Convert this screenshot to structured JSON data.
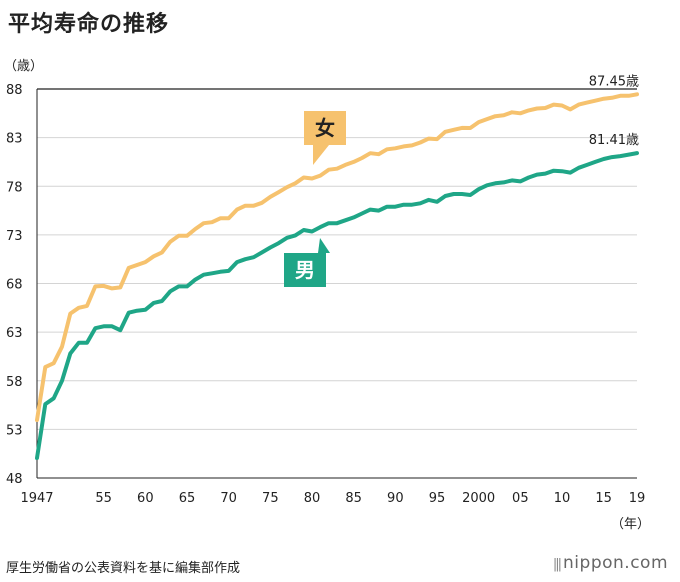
{
  "title": "平均寿命の推移",
  "source": "厚生労働省の公表資料を基に編集部作成",
  "brand": "nippon.com",
  "chart_data": {
    "type": "line",
    "ylabel": "（歳）",
    "xlabel": "（年）",
    "ylim": [
      48,
      88
    ],
    "yticks": [
      48,
      53,
      58,
      63,
      68,
      73,
      78,
      83,
      88
    ],
    "xlim": [
      1947,
      2019
    ],
    "xticks": [
      {
        "value": 1947,
        "label": "1947"
      },
      {
        "value": 1955,
        "label": "55"
      },
      {
        "value": 1960,
        "label": "60"
      },
      {
        "value": 1965,
        "label": "65"
      },
      {
        "value": 1970,
        "label": "70"
      },
      {
        "value": 1975,
        "label": "75"
      },
      {
        "value": 1980,
        "label": "80"
      },
      {
        "value": 1985,
        "label": "85"
      },
      {
        "value": 1990,
        "label": "90"
      },
      {
        "value": 1995,
        "label": "95"
      },
      {
        "value": 2000,
        "label": "2000"
      },
      {
        "value": 2005,
        "label": "05"
      },
      {
        "value": 2010,
        "label": "10"
      },
      {
        "value": 2015,
        "label": "15"
      },
      {
        "value": 2019,
        "label": "19"
      }
    ],
    "grid": "horizontal",
    "series": [
      {
        "name": "女",
        "color": "#f6c26e",
        "end_label": "87.45歳",
        "points": [
          [
            1947,
            53.96
          ],
          [
            1948,
            59.4
          ],
          [
            1949,
            59.8
          ],
          [
            1950,
            61.5
          ],
          [
            1951,
            64.9
          ],
          [
            1952,
            65.5
          ],
          [
            1953,
            65.7
          ],
          [
            1954,
            67.7
          ],
          [
            1955,
            67.75
          ],
          [
            1956,
            67.5
          ],
          [
            1957,
            67.6
          ],
          [
            1958,
            69.6
          ],
          [
            1959,
            69.9
          ],
          [
            1960,
            70.2
          ],
          [
            1961,
            70.8
          ],
          [
            1962,
            71.2
          ],
          [
            1963,
            72.3
          ],
          [
            1964,
            72.9
          ],
          [
            1965,
            72.9
          ],
          [
            1966,
            73.6
          ],
          [
            1967,
            74.2
          ],
          [
            1968,
            74.3
          ],
          [
            1969,
            74.7
          ],
          [
            1970,
            74.7
          ],
          [
            1971,
            75.6
          ],
          [
            1972,
            76.0
          ],
          [
            1973,
            76.0
          ],
          [
            1974,
            76.3
          ],
          [
            1975,
            76.9
          ],
          [
            1976,
            77.4
          ],
          [
            1977,
            77.9
          ],
          [
            1978,
            78.3
          ],
          [
            1979,
            78.9
          ],
          [
            1980,
            78.8
          ],
          [
            1981,
            79.1
          ],
          [
            1982,
            79.7
          ],
          [
            1983,
            79.8
          ],
          [
            1984,
            80.2
          ],
          [
            1985,
            80.5
          ],
          [
            1986,
            80.9
          ],
          [
            1987,
            81.4
          ],
          [
            1988,
            81.3
          ],
          [
            1989,
            81.8
          ],
          [
            1990,
            81.9
          ],
          [
            1991,
            82.1
          ],
          [
            1992,
            82.2
          ],
          [
            1993,
            82.5
          ],
          [
            1994,
            82.9
          ],
          [
            1995,
            82.85
          ],
          [
            1996,
            83.6
          ],
          [
            1997,
            83.8
          ],
          [
            1998,
            84.0
          ],
          [
            1999,
            83.99
          ],
          [
            2000,
            84.6
          ],
          [
            2001,
            84.9
          ],
          [
            2002,
            85.2
          ],
          [
            2003,
            85.3
          ],
          [
            2004,
            85.6
          ],
          [
            2005,
            85.5
          ],
          [
            2006,
            85.8
          ],
          [
            2007,
            86.0
          ],
          [
            2008,
            86.05
          ],
          [
            2009,
            86.4
          ],
          [
            2010,
            86.3
          ],
          [
            2011,
            85.9
          ],
          [
            2012,
            86.4
          ],
          [
            2013,
            86.6
          ],
          [
            2014,
            86.8
          ],
          [
            2015,
            87.0
          ],
          [
            2016,
            87.1
          ],
          [
            2017,
            87.3
          ],
          [
            2018,
            87.3
          ],
          [
            2019,
            87.45
          ]
        ]
      },
      {
        "name": "男",
        "color": "#1fa687",
        "end_label": "81.41歳",
        "points": [
          [
            1947,
            50.06
          ],
          [
            1948,
            55.6
          ],
          [
            1949,
            56.2
          ],
          [
            1950,
            58.0
          ],
          [
            1951,
            60.8
          ],
          [
            1952,
            61.9
          ],
          [
            1953,
            61.9
          ],
          [
            1954,
            63.4
          ],
          [
            1955,
            63.6
          ],
          [
            1956,
            63.6
          ],
          [
            1957,
            63.2
          ],
          [
            1958,
            65.0
          ],
          [
            1959,
            65.2
          ],
          [
            1960,
            65.3
          ],
          [
            1961,
            66.0
          ],
          [
            1962,
            66.2
          ],
          [
            1963,
            67.2
          ],
          [
            1964,
            67.7
          ],
          [
            1965,
            67.7
          ],
          [
            1966,
            68.4
          ],
          [
            1967,
            68.9
          ],
          [
            1968,
            69.05
          ],
          [
            1969,
            69.2
          ],
          [
            1970,
            69.3
          ],
          [
            1971,
            70.2
          ],
          [
            1972,
            70.5
          ],
          [
            1973,
            70.7
          ],
          [
            1974,
            71.2
          ],
          [
            1975,
            71.7
          ],
          [
            1976,
            72.15
          ],
          [
            1977,
            72.7
          ],
          [
            1978,
            72.95
          ],
          [
            1979,
            73.5
          ],
          [
            1980,
            73.35
          ],
          [
            1981,
            73.8
          ],
          [
            1982,
            74.2
          ],
          [
            1983,
            74.2
          ],
          [
            1984,
            74.5
          ],
          [
            1985,
            74.8
          ],
          [
            1986,
            75.2
          ],
          [
            1987,
            75.6
          ],
          [
            1988,
            75.5
          ],
          [
            1989,
            75.9
          ],
          [
            1990,
            75.9
          ],
          [
            1991,
            76.1
          ],
          [
            1992,
            76.1
          ],
          [
            1993,
            76.25
          ],
          [
            1994,
            76.6
          ],
          [
            1995,
            76.4
          ],
          [
            1996,
            77.0
          ],
          [
            1997,
            77.2
          ],
          [
            1998,
            77.2
          ],
          [
            1999,
            77.1
          ],
          [
            2000,
            77.7
          ],
          [
            2001,
            78.1
          ],
          [
            2002,
            78.3
          ],
          [
            2003,
            78.4
          ],
          [
            2004,
            78.6
          ],
          [
            2005,
            78.5
          ],
          [
            2006,
            78.9
          ],
          [
            2007,
            79.2
          ],
          [
            2008,
            79.3
          ],
          [
            2009,
            79.6
          ],
          [
            2010,
            79.55
          ],
          [
            2011,
            79.4
          ],
          [
            2012,
            79.9
          ],
          [
            2013,
            80.2
          ],
          [
            2014,
            80.5
          ],
          [
            2015,
            80.8
          ],
          [
            2016,
            81.0
          ],
          [
            2017,
            81.1
          ],
          [
            2018,
            81.25
          ],
          [
            2019,
            81.41
          ]
        ]
      }
    ]
  }
}
